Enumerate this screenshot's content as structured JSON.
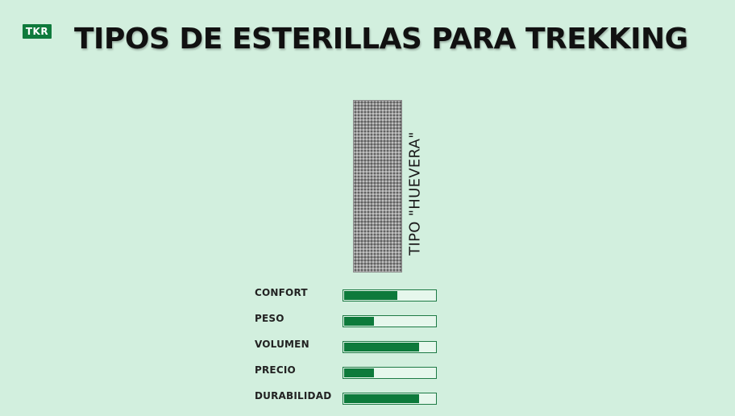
{
  "logo": {
    "text": "TKR"
  },
  "title": "TIPOS DE ESTERILLAS PARA TREKKING",
  "mat": {
    "label": "TIPO \"HUEVERA\""
  },
  "ratings": [
    {
      "label": "CONFORT",
      "value": 0.58
    },
    {
      "label": "PESO",
      "value": 0.33
    },
    {
      "label": "VOLUMEN",
      "value": 0.82
    },
    {
      "label": "PRECIO",
      "value": 0.33
    },
    {
      "label": "DURABILIDAD",
      "value": 0.82
    }
  ],
  "colors": {
    "background": "#d2efde",
    "accent": "#0d7a3b",
    "title": "#111111"
  }
}
